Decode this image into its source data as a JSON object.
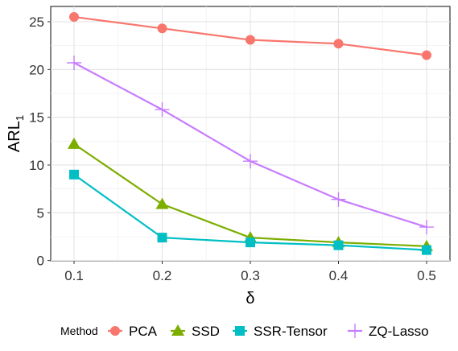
{
  "chart_data": {
    "type": "line",
    "xlabel": "δ",
    "ylabel_main": "ARL",
    "ylabel_sub": "1",
    "x": [
      0.1,
      0.2,
      0.3,
      0.4,
      0.5
    ],
    "x_tick_labels": [
      "0.1",
      "0.2",
      "0.3",
      "0.4",
      "0.5"
    ],
    "xlim": [
      0.0735,
      0.5265
    ],
    "ylim": [
      -0.03,
      26.6
    ],
    "y_ticks": [
      0,
      5,
      10,
      15,
      20,
      25
    ],
    "y_tick_labels": [
      "0",
      "5",
      "10",
      "15",
      "20",
      "25"
    ],
    "grid": true,
    "legend_title": "Method",
    "legend_position": "bottom",
    "series": [
      {
        "name": "PCA",
        "values": [
          25.5,
          24.3,
          23.1,
          22.7,
          21.5
        ],
        "color": "#F8766D",
        "marker": "circle"
      },
      {
        "name": "SSD",
        "values": [
          12.2,
          5.9,
          2.4,
          1.9,
          1.5
        ],
        "color": "#7CAE00",
        "marker": "triangle"
      },
      {
        "name": "SSR-Tensor",
        "values": [
          9.0,
          2.4,
          1.9,
          1.6,
          1.1
        ],
        "color": "#00BFC4",
        "marker": "square"
      },
      {
        "name": "ZQ-Lasso",
        "values": [
          20.7,
          15.8,
          10.4,
          6.4,
          3.5
        ],
        "color": "#C77CFF",
        "marker": "plus"
      }
    ]
  }
}
